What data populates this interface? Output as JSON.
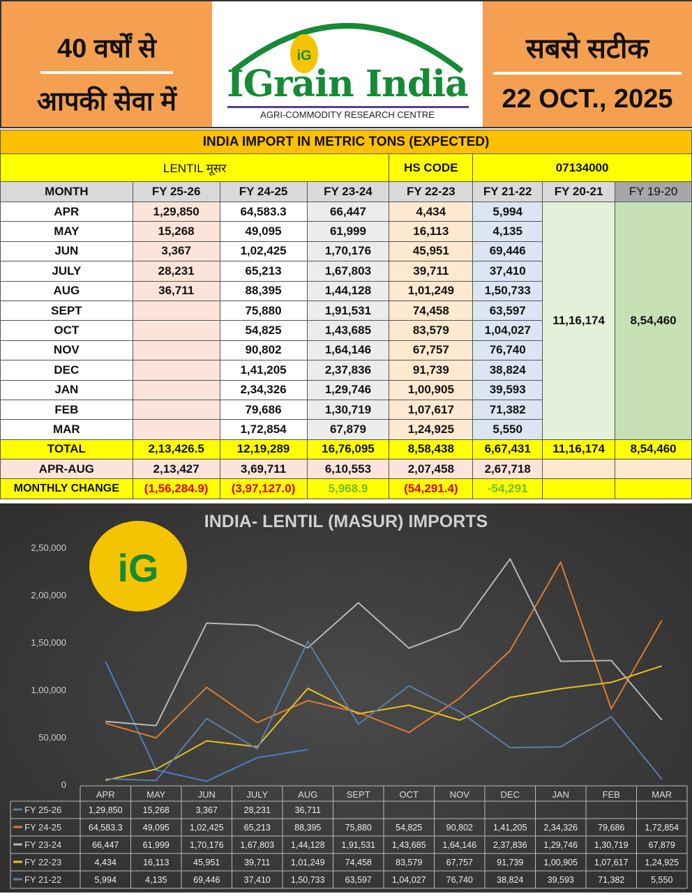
{
  "header": {
    "left_line1": "40 वर्षों से",
    "left_line2": "आपकी सेवा में",
    "brand": "IGrain India",
    "brand_sub": "AGRI-COMMODITY RESEARCH CENTRE",
    "logo_letters": "iG",
    "right_line1": "सबसे सटीक",
    "date": "22 OCT., 2025"
  },
  "table": {
    "title": "INDIA IMPORT IN METRIC TONS (EXPECTED)",
    "commodity": "LENTIL मूसर",
    "hs_label": "HS CODE",
    "hs_code": "07134000",
    "columns": [
      "MONTH",
      "FY 25-26",
      "FY 24-25",
      "FY 23-24",
      "FY 22-23",
      "FY 21-22",
      "FY 20-21",
      "FY 19-20"
    ],
    "rows": [
      [
        "APR",
        "1,29,850",
        "64,583.3",
        "66,447",
        "4,434",
        "5,994"
      ],
      [
        "MAY",
        "15,268",
        "49,095",
        "61,999",
        "16,113",
        "4,135"
      ],
      [
        "JUN",
        "3,367",
        "1,02,425",
        "1,70,176",
        "45,951",
        "69,446"
      ],
      [
        "JULY",
        "28,231",
        "65,213",
        "1,67,803",
        "39,711",
        "37,410"
      ],
      [
        "AUG",
        "36,711",
        "88,395",
        "1,44,128",
        "1,01,249",
        "1,50,733"
      ],
      [
        "SEPT",
        "",
        "75,880",
        "1,91,531",
        "74,458",
        "63,597"
      ],
      [
        "OCT",
        "",
        "54,825",
        "1,43,685",
        "83,579",
        "1,04,027"
      ],
      [
        "NOV",
        "",
        "90,802",
        "1,64,146",
        "67,757",
        "76,740"
      ],
      [
        "DEC",
        "",
        "1,41,205",
        "2,37,836",
        "91,739",
        "38,824"
      ],
      [
        "JAN",
        "",
        "2,34,326",
        "1,29,746",
        "1,00,905",
        "39,593"
      ],
      [
        "FEB",
        "",
        "79,686",
        "1,30,719",
        "1,07,617",
        "71,382"
      ],
      [
        "MAR",
        "",
        "1,72,854",
        "67,879",
        "1,24,925",
        "5,550"
      ]
    ],
    "annual_fy2021": "11,16,174",
    "annual_fy1920": "8,54,460",
    "total": [
      "TOTAL",
      "2,13,426.5",
      "12,19,289",
      "16,76,095",
      "8,58,438",
      "6,67,431",
      "11,16,174",
      "8,54,460"
    ],
    "apr_aug": [
      "APR-AUG",
      "2,13,427",
      "3,69,711",
      "6,10,553",
      "2,07,458",
      "2,67,718",
      "",
      ""
    ],
    "monthly_change": [
      "MONTHLY CHANGE",
      "(1,56,284.9)",
      "(3,97,127.0)",
      "5,968.9",
      "(54,291.4)",
      "-54,291",
      "",
      ""
    ]
  },
  "chart_data": {
    "type": "line",
    "title": "INDIA- LENTIL (MASUR) IMPORTS",
    "categories": [
      "APR",
      "MAY",
      "JUN",
      "JULY",
      "AUG",
      "SEPT",
      "OCT",
      "NOV",
      "DEC",
      "JAN",
      "FEB",
      "MAR"
    ],
    "ylim": [
      0,
      250000
    ],
    "yticks": [
      "0",
      "50,000",
      "1,00,000",
      "1,50,000",
      "2,00,000",
      "2,50,000"
    ],
    "yticks_values": [
      0,
      50000,
      100000,
      150000,
      200000,
      250000
    ],
    "grid": false,
    "legend": "data-table-below",
    "series": [
      {
        "name": "FY 25-26",
        "color": "#4a7fc1",
        "values": [
          129850,
          15268,
          3367,
          28231,
          36711,
          null,
          null,
          null,
          null,
          null,
          null,
          null
        ],
        "labels": [
          "1,29,850",
          "15,268",
          "3,367",
          "28,231",
          "36,711",
          "",
          "",
          "",
          "",
          "",
          "",
          ""
        ]
      },
      {
        "name": "FY 24-25",
        "color": "#e07a30",
        "values": [
          64583.3,
          49095,
          102425,
          65213,
          88395,
          75880,
          54825,
          90802,
          141205,
          234326,
          79686,
          172854
        ],
        "labels": [
          "64,583.3",
          "49,095",
          "1,02,425",
          "65,213",
          "88,395",
          "75,880",
          "54,825",
          "90,802",
          "1,41,205",
          "2,34,326",
          "79,686",
          "1,72,854"
        ]
      },
      {
        "name": "FY 23-24",
        "color": "#b8b8b8",
        "values": [
          66447,
          61999,
          170176,
          167803,
          144128,
          191531,
          143685,
          164146,
          237836,
          129746,
          130719,
          67879
        ],
        "labels": [
          "66,447",
          "61,999",
          "1,70,176",
          "1,67,803",
          "1,44,128",
          "1,91,531",
          "1,43,685",
          "1,64,146",
          "2,37,836",
          "1,29,746",
          "1,30,719",
          "67,879"
        ]
      },
      {
        "name": "FY 22-23",
        "color": "#e8c020",
        "values": [
          4434,
          16113,
          45951,
          39711,
          101249,
          74458,
          83579,
          67757,
          91739,
          100905,
          107617,
          124925
        ],
        "labels": [
          "4,434",
          "16,113",
          "45,951",
          "39,711",
          "1,01,249",
          "74,458",
          "83,579",
          "67,757",
          "91,739",
          "1,00,905",
          "1,07,617",
          "1,24,925"
        ]
      },
      {
        "name": "FY 21-22",
        "color": "#5a7fa8",
        "values": [
          5994,
          4135,
          69446,
          37410,
          150733,
          63597,
          104027,
          76740,
          38824,
          39593,
          71382,
          5550
        ],
        "labels": [
          "5,994",
          "4,135",
          "69,446",
          "37,410",
          "1,50,733",
          "63,597",
          "1,04,027",
          "76,740",
          "38,824",
          "39,593",
          "71,382",
          "5,550"
        ]
      }
    ]
  }
}
